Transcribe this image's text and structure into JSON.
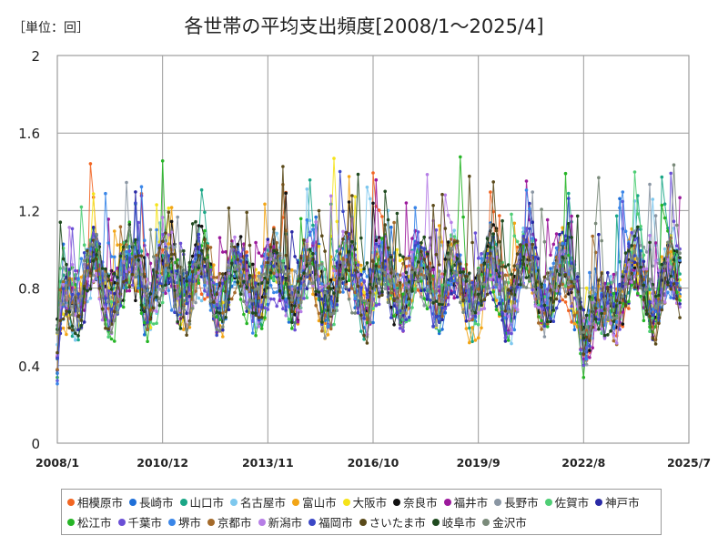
{
  "unit_label": "［単位：回］",
  "chart_data": {
    "type": "line",
    "title": "各世帯の平均支出頻度[2008/1～2025/4]",
    "xlabel": "",
    "ylabel": "",
    "x_ticks": [
      "2008/1",
      "2010/12",
      "2013/11",
      "2016/10",
      "2019/9",
      "2022/8",
      "2025/7"
    ],
    "y_ticks": [
      "0",
      "0.4",
      "0.8",
      "1.2",
      "1.6",
      "2"
    ],
    "ylim": [
      0,
      2
    ],
    "x_start": "2008/1",
    "x_end": "2025/4",
    "grid": true,
    "legend_position": "bottom",
    "series": [
      {
        "name": "相模原市",
        "color": "#f26522"
      },
      {
        "name": "長崎市",
        "color": "#1f6fd8"
      },
      {
        "name": "山口市",
        "color": "#1aa686"
      },
      {
        "name": "名古屋市",
        "color": "#7ec8ee"
      },
      {
        "name": "富山市",
        "color": "#f2a516"
      },
      {
        "name": "大阪市",
        "color": "#f5e31a"
      },
      {
        "name": "奈良市",
        "color": "#111111"
      },
      {
        "name": "福井市",
        "color": "#9c1a9c"
      },
      {
        "name": "長野市",
        "color": "#8a96a3"
      },
      {
        "name": "佐賀市",
        "color": "#4fce75"
      },
      {
        "name": "神戸市",
        "color": "#2a2aa6"
      },
      {
        "name": "松江市",
        "color": "#26b526"
      },
      {
        "name": "千葉市",
        "color": "#6a4fd6"
      },
      {
        "name": "堺市",
        "color": "#3a86e8"
      },
      {
        "name": "京都市",
        "color": "#a46a2a"
      },
      {
        "name": "新潟市",
        "color": "#b67ee6"
      },
      {
        "name": "福岡市",
        "color": "#3b47c6"
      },
      {
        "name": "さいたま市",
        "color": "#5a4a1a"
      },
      {
        "name": "岐阜市",
        "color": "#1f4a1f"
      },
      {
        "name": "金沢市",
        "color": "#7a8a7a"
      }
    ]
  }
}
